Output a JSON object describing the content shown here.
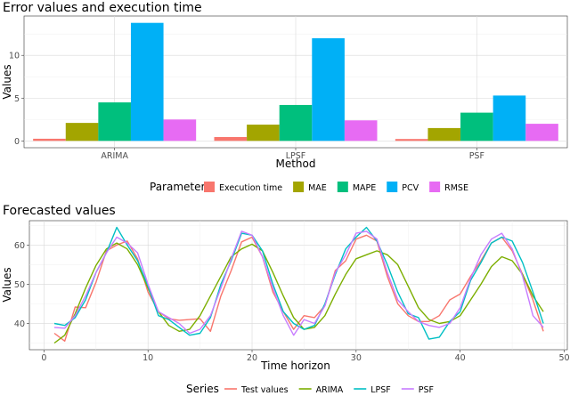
{
  "chart_data": [
    {
      "type": "bar",
      "title": "Error values and execution time",
      "xlabel": "Method",
      "ylabel": "Values",
      "categories": [
        "ARIMA",
        "LPSF",
        "PSF"
      ],
      "ylim": [
        -0.8,
        14.6
      ],
      "yticks": [
        0,
        5,
        10
      ],
      "grid": true,
      "legend": {
        "title": "Parameter",
        "position": "bottom"
      },
      "series": [
        {
          "name": "Execution time",
          "color": "#F8766D",
          "values": [
            0.25,
            0.45,
            0.22
          ]
        },
        {
          "name": "MAE",
          "color": "#A3A500",
          "values": [
            2.1,
            1.9,
            1.5
          ]
        },
        {
          "name": "MAPE",
          "color": "#00BF7D",
          "values": [
            4.5,
            4.2,
            3.3
          ]
        },
        {
          "name": "PCV",
          "color": "#00B0F6",
          "values": [
            13.8,
            12.0,
            5.3
          ]
        },
        {
          "name": "RMSE",
          "color": "#E76BF3",
          "values": [
            2.5,
            2.4,
            2.0
          ]
        }
      ]
    },
    {
      "type": "line",
      "title": "Forecasted values",
      "xlabel": "Time horizon",
      "ylabel": "Values",
      "xlim": [
        -1.4,
        50.3
      ],
      "ylim": [
        33.3,
        66.2
      ],
      "xticks": [
        0,
        10,
        20,
        30,
        40,
        50
      ],
      "yticks": [
        40,
        50,
        60
      ],
      "grid": true,
      "legend": {
        "title": "Series",
        "position": "bottom"
      },
      "x": [
        1,
        2,
        3,
        4,
        5,
        6,
        7,
        8,
        9,
        10,
        11,
        12,
        13,
        14,
        15,
        16,
        17,
        18,
        19,
        20,
        21,
        22,
        23,
        24,
        25,
        26,
        27,
        28,
        29,
        30,
        31,
        32,
        33,
        34,
        35,
        36,
        37,
        38,
        39,
        40,
        41,
        42,
        43,
        44,
        45,
        46,
        47,
        48
      ],
      "series": [
        {
          "name": "Test values",
          "color": "#F8766D",
          "values": [
            37.5,
            35.5,
            44.2,
            44.0,
            50.5,
            58.5,
            60.0,
            61.0,
            56.5,
            48.0,
            43.0,
            41.2,
            40.8,
            41.0,
            41.2,
            38.0,
            47.0,
            53.5,
            60.8,
            62.0,
            57.0,
            48.0,
            43.0,
            38.5,
            42.0,
            41.5,
            44.5,
            53.5,
            56.0,
            61.5,
            62.5,
            61.0,
            52.0,
            45.0,
            42.0,
            40.5,
            40.5,
            42.0,
            46.0,
            47.5,
            52.0,
            56.0,
            60.5,
            62.0,
            58.5,
            52.5,
            46.0,
            38.0
          ]
        },
        {
          "name": "ARIMA",
          "color": "#7CAE00",
          "values": [
            35.0,
            37.0,
            42.5,
            49.0,
            54.8,
            59.0,
            60.5,
            59.0,
            55.0,
            49.0,
            43.0,
            39.5,
            38.0,
            38.5,
            42.0,
            47.0,
            52.0,
            57.0,
            59.0,
            60.2,
            58.5,
            53.0,
            47.0,
            41.5,
            38.5,
            39.0,
            42.0,
            47.5,
            52.5,
            56.5,
            57.5,
            58.5,
            57.5,
            55.0,
            49.5,
            44.0,
            41.0,
            40.0,
            40.5,
            42.0,
            46.0,
            50.0,
            54.5,
            57.0,
            56.0,
            52.5,
            47.0,
            43.0
          ]
        },
        {
          "name": "LPSF",
          "color": "#00BFC4",
          "values": [
            40.0,
            39.5,
            41.5,
            46.0,
            53.0,
            58.0,
            64.5,
            60.0,
            56.0,
            49.5,
            42.0,
            41.0,
            39.0,
            37.0,
            37.5,
            41.5,
            50.0,
            56.0,
            63.0,
            62.5,
            58.5,
            50.0,
            43.0,
            40.0,
            38.5,
            39.5,
            45.0,
            52.5,
            59.0,
            62.0,
            64.5,
            61.0,
            55.0,
            48.0,
            42.5,
            41.5,
            36.0,
            36.5,
            40.5,
            43.0,
            51.0,
            55.5,
            60.5,
            62.0,
            61.0,
            55.5,
            48.0,
            40.0
          ]
        },
        {
          "name": "PSF",
          "color": "#C77CFF",
          "values": [
            39.0,
            38.8,
            42.0,
            47.0,
            53.0,
            58.0,
            62.0,
            60.5,
            58.0,
            50.0,
            43.0,
            41.5,
            40.0,
            37.5,
            38.5,
            42.0,
            49.0,
            56.5,
            63.5,
            62.5,
            57.0,
            49.0,
            42.0,
            37.0,
            41.0,
            40.0,
            44.5,
            53.0,
            57.5,
            63.0,
            63.5,
            61.5,
            53.0,
            46.0,
            43.0,
            40.5,
            39.5,
            39.0,
            40.0,
            44.0,
            51.5,
            57.5,
            61.5,
            63.0,
            59.0,
            52.0,
            42.0,
            39.0
          ]
        }
      ]
    }
  ]
}
